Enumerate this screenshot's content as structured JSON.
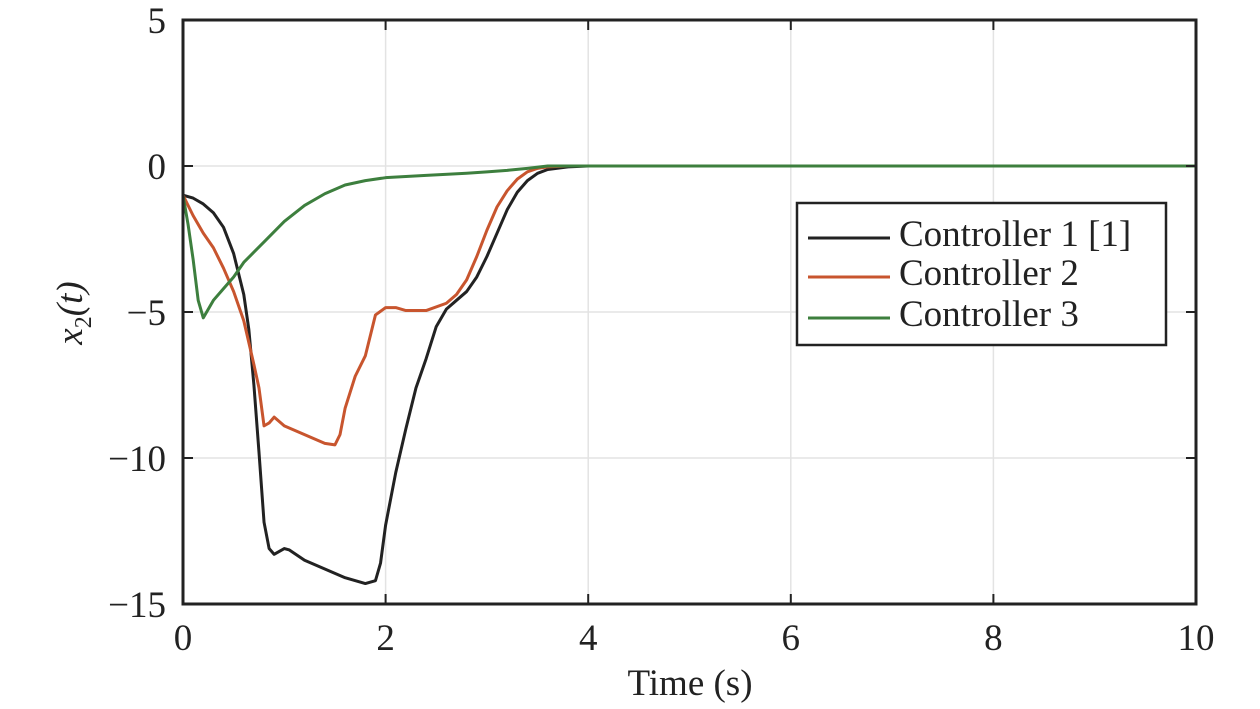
{
  "chart_data": {
    "type": "line",
    "xlabel": "Time (s)",
    "ylabel": "x",
    "ylabel_subscript": "2",
    "ylabel_arg": "(t)",
    "xlim": [
      0,
      10
    ],
    "ylim": [
      -15,
      5
    ],
    "xticks": [
      0,
      2,
      4,
      6,
      8,
      10
    ],
    "yticks": [
      -15,
      -10,
      -5,
      0,
      5
    ],
    "xtick_labels": [
      "0",
      "2",
      "4",
      "6",
      "8",
      "10"
    ],
    "ytick_labels": [
      "−15",
      "−10",
      "−5",
      "0",
      "5"
    ],
    "grid": true,
    "legend_position": "right",
    "series": [
      {
        "name": "Controller 1 [1]",
        "color": "#222222",
        "x": [
          0,
          0.1,
          0.2,
          0.3,
          0.4,
          0.5,
          0.6,
          0.65,
          0.7,
          0.75,
          0.8,
          0.85,
          0.9,
          0.95,
          1.0,
          1.05,
          1.2,
          1.4,
          1.6,
          1.8,
          1.9,
          1.95,
          2.0,
          2.1,
          2.2,
          2.3,
          2.4,
          2.5,
          2.6,
          2.7,
          2.8,
          2.9,
          3.0,
          3.1,
          3.2,
          3.3,
          3.4,
          3.5,
          3.6,
          3.8,
          4.0,
          4.2,
          5,
          6,
          7,
          8,
          9,
          10
        ],
        "y": [
          -1.0,
          -1.1,
          -1.3,
          -1.6,
          -2.1,
          -3.0,
          -4.4,
          -5.6,
          -7.5,
          -9.8,
          -12.2,
          -13.1,
          -13.3,
          -13.2,
          -13.1,
          -13.15,
          -13.5,
          -13.8,
          -14.1,
          -14.3,
          -14.2,
          -13.6,
          -12.3,
          -10.5,
          -9.0,
          -7.6,
          -6.6,
          -5.5,
          -4.9,
          -4.6,
          -4.3,
          -3.8,
          -3.1,
          -2.3,
          -1.5,
          -0.9,
          -0.5,
          -0.25,
          -0.12,
          -0.03,
          0,
          0,
          0,
          0,
          0,
          0,
          0,
          0
        ]
      },
      {
        "name": "Controller 2",
        "color": "#c8552e",
        "x": [
          0,
          0.1,
          0.2,
          0.3,
          0.4,
          0.5,
          0.6,
          0.7,
          0.75,
          0.8,
          0.85,
          0.9,
          0.95,
          1.0,
          1.2,
          1.4,
          1.5,
          1.55,
          1.6,
          1.7,
          1.8,
          1.85,
          1.9,
          2.0,
          2.1,
          2.2,
          2.4,
          2.6,
          2.7,
          2.8,
          2.9,
          3.0,
          3.1,
          3.2,
          3.3,
          3.4,
          3.5,
          3.6,
          3.8,
          4.0,
          5,
          6,
          7,
          8,
          9,
          10
        ],
        "y": [
          -1.0,
          -1.7,
          -2.3,
          -2.8,
          -3.5,
          -4.3,
          -5.3,
          -6.8,
          -7.6,
          -8.9,
          -8.8,
          -8.6,
          -8.75,
          -8.9,
          -9.2,
          -9.5,
          -9.55,
          -9.2,
          -8.3,
          -7.2,
          -6.5,
          -5.8,
          -5.1,
          -4.85,
          -4.85,
          -4.95,
          -4.95,
          -4.7,
          -4.4,
          -3.9,
          -3.1,
          -2.2,
          -1.4,
          -0.85,
          -0.45,
          -0.2,
          -0.08,
          -0.03,
          0,
          0,
          0,
          0,
          0,
          0,
          0,
          0
        ]
      },
      {
        "name": "Controller 3",
        "color": "#3d7f3e",
        "x": [
          0,
          0.05,
          0.1,
          0.15,
          0.2,
          0.25,
          0.3,
          0.4,
          0.5,
          0.6,
          0.8,
          1.0,
          1.2,
          1.4,
          1.6,
          1.8,
          2.0,
          2.4,
          2.8,
          3.0,
          3.2,
          3.4,
          3.6,
          4.0,
          5,
          6,
          7,
          8,
          9,
          10
        ],
        "y": [
          -1.0,
          -2.0,
          -3.2,
          -4.6,
          -5.2,
          -4.9,
          -4.6,
          -4.2,
          -3.8,
          -3.3,
          -2.6,
          -1.9,
          -1.35,
          -0.95,
          -0.65,
          -0.5,
          -0.4,
          -0.32,
          -0.25,
          -0.2,
          -0.15,
          -0.08,
          0,
          0,
          0,
          0,
          0,
          0,
          0,
          0
        ]
      }
    ]
  }
}
